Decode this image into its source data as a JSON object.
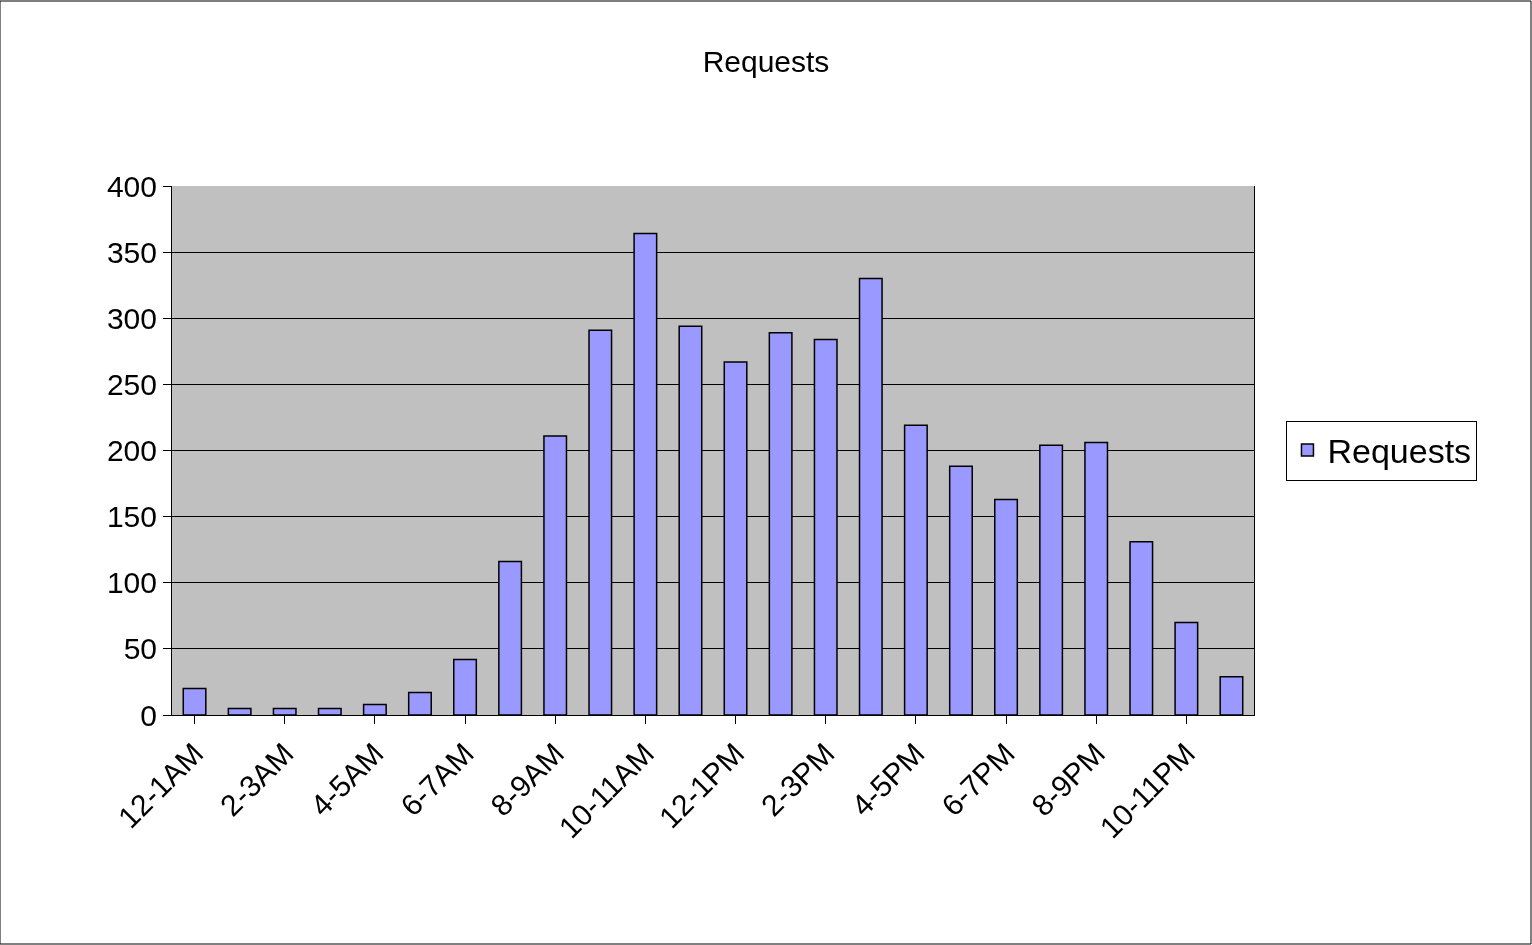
{
  "chart_data": {
    "type": "bar",
    "title": "Requests",
    "categories": [
      "12-1AM",
      null,
      "2-3AM",
      null,
      "4-5AM",
      null,
      "6-7AM",
      null,
      "8-9AM",
      null,
      "10-11AM",
      null,
      "12-1PM",
      null,
      "2-3PM",
      null,
      "4-5PM",
      null,
      "6-7PM",
      null,
      "8-9PM",
      null,
      "10-11PM",
      null
    ],
    "series": [
      {
        "name": "Requests",
        "color": "#9999ff",
        "values": [
          20,
          5,
          5,
          5,
          8,
          17,
          42,
          116,
          211,
          291,
          364,
          294,
          267,
          289,
          284,
          330,
          219,
          188,
          163,
          204,
          206,
          131,
          70,
          29
        ]
      }
    ],
    "ylim": [
      0,
      400
    ],
    "yticks": [
      0,
      50,
      100,
      150,
      200,
      250,
      300,
      350,
      400
    ],
    "grid": "y",
    "legend": "right"
  }
}
